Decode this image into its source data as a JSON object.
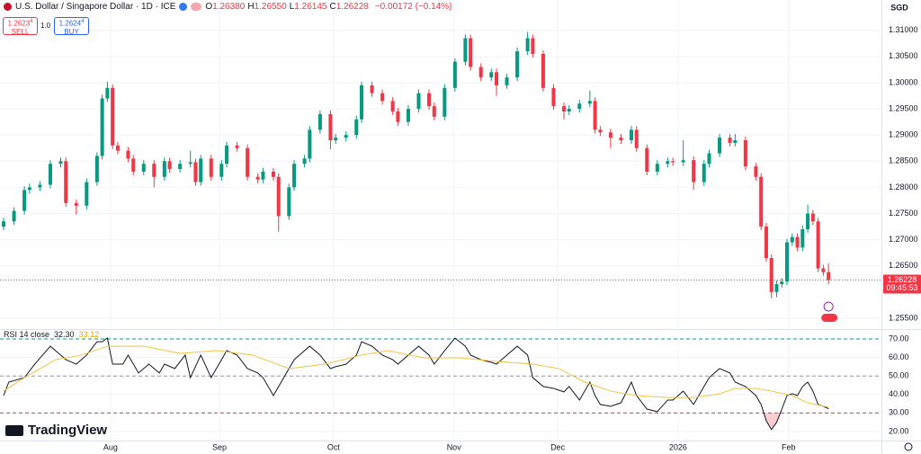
{
  "header": {
    "title": "U.S. Dollar / Singapore Dollar · 1D · ICE",
    "ohlc_keys": [
      "O",
      "H",
      "L",
      "C"
    ],
    "ohlc_values": [
      "1.26380",
      "1.26550",
      "1.26145",
      "1.26228"
    ],
    "change": "−0.00172 (−0.14%)",
    "sell_price": "1.2623",
    "sell_sup": "4",
    "sell_label": "SELL",
    "spread": "1.0",
    "buy_price": "1.2624",
    "buy_sup": "4",
    "buy_label": "BUY",
    "currency": "SGD",
    "price_tag_time": "09:45:53",
    "logo": "TradingView"
  },
  "chart_data": [
    {
      "type": "candlestick",
      "up_color": "#089981",
      "down_color": "#f23645",
      "grid": true,
      "last_price_line": true,
      "xlim": [
        -0.7,
        169.2
      ],
      "ylim": [
        1.2531,
        1.3158
      ],
      "xticks": [
        {
          "value": 20.6,
          "label": "Aug"
        },
        {
          "value": 41.6,
          "label": "Sep"
        },
        {
          "value": 63.6,
          "label": "Oct"
        },
        {
          "value": 86.8,
          "label": "Nov"
        },
        {
          "value": 106.8,
          "label": "Dec"
        },
        {
          "value": 130,
          "label": "2026"
        },
        {
          "value": 151.3,
          "label": "Feb"
        }
      ],
      "yticks": [
        {
          "value": 1.31,
          "label": "1.31000"
        },
        {
          "value": 1.305,
          "label": "1.30500"
        },
        {
          "value": 1.3,
          "label": "1.30000"
        },
        {
          "value": 1.295,
          "label": "1.29500"
        },
        {
          "value": 1.29,
          "label": "1.29000"
        },
        {
          "value": 1.285,
          "label": "1.28500"
        },
        {
          "value": 1.28,
          "label": "1.28000"
        },
        {
          "value": 1.275,
          "label": "1.27500"
        },
        {
          "value": 1.27,
          "label": "1.27000"
        },
        {
          "value": 1.265,
          "label": "1.26500"
        },
        {
          "value": 1.255,
          "label": "1.25500"
        }
      ],
      "x": [
        0,
        2,
        4,
        5,
        7,
        9,
        11,
        12,
        14,
        16,
        18,
        19,
        20,
        21,
        22,
        24,
        25,
        27,
        29,
        31,
        32,
        34,
        36,
        37,
        38,
        40,
        42,
        43,
        45,
        47,
        49,
        50,
        52,
        53,
        55,
        56,
        58,
        59,
        61,
        63,
        64,
        66,
        68,
        69,
        71,
        73,
        75,
        76,
        78,
        80,
        82,
        83,
        85,
        87,
        89,
        90,
        92,
        94,
        95,
        97,
        99,
        101,
        102,
        104,
        106,
        108,
        109,
        111,
        113,
        114,
        115,
        117,
        119,
        121,
        122,
        124,
        126,
        128,
        129,
        131,
        133,
        135,
        136,
        138,
        140,
        141,
        143,
        145,
        146,
        147,
        148,
        149,
        150,
        151,
        152,
        153,
        154,
        155,
        156,
        157,
        158,
        159
      ],
      "open": [
        1.2725,
        1.2735,
        1.2755,
        1.2795,
        1.28,
        1.2805,
        1.2845,
        1.285,
        1.277,
        1.2765,
        1.281,
        1.286,
        1.297,
        1.299,
        1.288,
        1.287,
        1.2855,
        1.283,
        1.2845,
        1.282,
        1.285,
        1.2835,
        1.2845,
        1.2848,
        1.281,
        1.2855,
        1.282,
        1.2845,
        1.288,
        1.2875,
        1.282,
        1.2815,
        1.283,
        1.282,
        1.2745,
        1.28,
        1.2845,
        1.2855,
        1.291,
        1.294,
        1.289,
        1.2895,
        1.29,
        1.293,
        1.2995,
        1.298,
        1.2965,
        1.2945,
        1.2925,
        1.295,
        1.298,
        1.2955,
        1.2935,
        1.299,
        1.304,
        1.3085,
        1.303,
        1.301,
        1.302,
        1.2995,
        1.301,
        1.306,
        1.3085,
        1.3055,
        1.299,
        1.2955,
        1.2945,
        1.295,
        1.296,
        1.2965,
        1.291,
        1.2905,
        1.2895,
        1.289,
        1.291,
        1.2875,
        1.283,
        1.2845,
        1.285,
        1.2848,
        1.2852,
        1.281,
        1.2845,
        1.2865,
        1.2895,
        1.2885,
        1.289,
        1.284,
        1.282,
        1.2725,
        1.2665,
        1.26,
        1.2615,
        1.262,
        1.2695,
        1.2705,
        1.2685,
        1.272,
        1.275,
        1.2735,
        1.2645,
        1.2638
      ],
      "high": [
        1.2742,
        1.2762,
        1.2802,
        1.2807,
        1.2812,
        1.2852,
        1.2857,
        1.2857,
        1.2777,
        1.2817,
        1.2867,
        1.2977,
        1.3002,
        1.2997,
        1.2887,
        1.2877,
        1.2862,
        1.2852,
        1.2852,
        1.2857,
        1.2857,
        1.2852,
        1.287,
        1.2855,
        1.2862,
        1.2862,
        1.2852,
        1.2887,
        1.2887,
        1.2882,
        1.2827,
        1.2837,
        1.2837,
        1.2827,
        1.2807,
        1.2852,
        1.2862,
        1.2917,
        1.2947,
        1.2947,
        1.2902,
        1.2907,
        1.2937,
        1.3002,
        1.3002,
        1.2987,
        1.2972,
        1.2952,
        1.2957,
        1.2987,
        1.2987,
        1.2962,
        1.2997,
        1.3047,
        1.3092,
        1.3092,
        1.3037,
        1.3027,
        1.3027,
        1.3017,
        1.3067,
        1.3097,
        1.3092,
        1.3062,
        1.2997,
        1.2962,
        1.2957,
        1.2967,
        1.2985,
        1.2972,
        1.2917,
        1.2912,
        1.2902,
        1.2917,
        1.2917,
        1.2882,
        1.2852,
        1.2857,
        1.2857,
        1.289,
        1.2859,
        1.2852,
        1.2872,
        1.2902,
        1.2902,
        1.2902,
        1.2897,
        1.2847,
        1.2827,
        1.2732,
        1.2672,
        1.2622,
        1.2627,
        1.2702,
        1.2712,
        1.2712,
        1.2727,
        1.2767,
        1.2757,
        1.2742,
        1.2652,
        1.2655
      ],
      "low": [
        1.2718,
        1.2728,
        1.2748,
        1.2788,
        1.2793,
        1.2798,
        1.2838,
        1.2763,
        1.2748,
        1.2758,
        1.2803,
        1.2853,
        1.2963,
        1.2873,
        1.2863,
        1.2848,
        1.2823,
        1.2823,
        1.28,
        1.2813,
        1.2828,
        1.2828,
        1.2838,
        1.2803,
        1.2803,
        1.2813,
        1.2813,
        1.2838,
        1.2868,
        1.2813,
        1.2808,
        1.2808,
        1.2813,
        1.2715,
        1.2738,
        1.2793,
        1.2838,
        1.2848,
        1.2903,
        1.2873,
        1.2883,
        1.2888,
        1.2893,
        1.2923,
        1.2973,
        1.2958,
        1.2938,
        1.2918,
        1.2918,
        1.2943,
        1.2948,
        1.2928,
        1.2928,
        1.2983,
        1.3033,
        1.3023,
        1.3003,
        1.3003,
        1.2975,
        1.2988,
        1.3003,
        1.3053,
        1.3048,
        1.2983,
        1.2948,
        1.293,
        1.2938,
        1.2943,
        1.2953,
        1.2903,
        1.2898,
        1.2875,
        1.2883,
        1.2883,
        1.2868,
        1.2823,
        1.2823,
        1.2838,
        1.2841,
        1.2841,
        1.2795,
        1.2803,
        1.2838,
        1.2858,
        1.2878,
        1.2878,
        1.2833,
        1.2813,
        1.2718,
        1.2658,
        1.2588,
        1.259,
        1.2608,
        1.2613,
        1.2688,
        1.2678,
        1.2678,
        1.2713,
        1.2728,
        1.2638,
        1.2631,
        1.26145
      ],
      "close": [
        1.2735,
        1.2755,
        1.2795,
        1.28,
        1.2805,
        1.2845,
        1.285,
        1.277,
        1.2765,
        1.281,
        1.286,
        1.297,
        1.299,
        1.288,
        1.287,
        1.2855,
        1.283,
        1.2845,
        1.282,
        1.285,
        1.2835,
        1.2845,
        1.2848,
        1.281,
        1.2855,
        1.282,
        1.2845,
        1.288,
        1.2875,
        1.282,
        1.2815,
        1.283,
        1.282,
        1.2745,
        1.28,
        1.2845,
        1.2855,
        1.291,
        1.294,
        1.289,
        1.2895,
        1.29,
        1.293,
        1.2995,
        1.298,
        1.2965,
        1.2945,
        1.2925,
        1.295,
        1.298,
        1.2955,
        1.2935,
        1.299,
        1.304,
        1.3085,
        1.303,
        1.301,
        1.302,
        1.2995,
        1.301,
        1.306,
        1.3085,
        1.3055,
        1.299,
        1.2955,
        1.2945,
        1.295,
        1.296,
        1.2965,
        1.291,
        1.2905,
        1.2895,
        1.289,
        1.291,
        1.2875,
        1.283,
        1.2845,
        1.285,
        1.2848,
        1.2852,
        1.281,
        1.2845,
        1.2865,
        1.2895,
        1.2885,
        1.289,
        1.284,
        1.282,
        1.2725,
        1.2665,
        1.26,
        1.2615,
        1.262,
        1.2695,
        1.2705,
        1.2685,
        1.272,
        1.275,
        1.2735,
        1.2645,
        1.2638,
        1.26228
      ]
    },
    {
      "type": "line",
      "title": "RSI 14 close",
      "grid": true,
      "xlim": [
        -0.7,
        169.2
      ],
      "ylim": [
        15.1,
        74.4
      ],
      "yticks": [
        {
          "value": 70,
          "label": "70.00"
        },
        {
          "value": 60,
          "label": "60.00"
        },
        {
          "value": 50,
          "label": "50.00"
        },
        {
          "value": 40,
          "label": "40.00"
        },
        {
          "value": 30,
          "label": "30.00"
        },
        {
          "value": 20,
          "label": "20.00"
        }
      ],
      "levels": [
        {
          "value": 70,
          "color": "#089981"
        },
        {
          "value": 50,
          "color": "#9598a1"
        },
        {
          "value": 30,
          "color": "#f23645"
        }
      ],
      "oversold_fill": "#f2364540",
      "series": [
        {
          "color": "#131722",
          "last_label": "32.30",
          "x": [
            0,
            1,
            4,
            6,
            9,
            11,
            12,
            14,
            16,
            18,
            19,
            20,
            21,
            23,
            24,
            26,
            28,
            30,
            31,
            33,
            35,
            36,
            38,
            40,
            42,
            43,
            45,
            47,
            49,
            50,
            52,
            54,
            56,
            58,
            59,
            61,
            63,
            64,
            66,
            68,
            69,
            71,
            73,
            75,
            76,
            78,
            80,
            82,
            83,
            85,
            87,
            89,
            90,
            92,
            94,
            95,
            97,
            99,
            101,
            102,
            104,
            106,
            108,
            109,
            111,
            113,
            114,
            115,
            117,
            119,
            121,
            122,
            124,
            126,
            128,
            129,
            131,
            133,
            135,
            136,
            138,
            140,
            141,
            143,
            145,
            146,
            147,
            148,
            149,
            150,
            151,
            152,
            153,
            154,
            155,
            156,
            157,
            158,
            159
          ],
          "values": [
            39.4,
            46.7,
            49.1,
            56.4,
            66.1,
            61.3,
            58.8,
            56.4,
            61.3,
            68.5,
            68.5,
            70.5,
            56.4,
            56.4,
            61.3,
            51.6,
            56.4,
            51.6,
            56.4,
            54,
            61.3,
            49.1,
            61.3,
            49.1,
            58.8,
            63.7,
            61.3,
            54,
            51.6,
            49.1,
            39.4,
            49.1,
            58.8,
            63.7,
            66.1,
            61.3,
            54,
            55,
            56.4,
            61.3,
            68.5,
            66.1,
            61.3,
            58.8,
            56.4,
            61.3,
            66.1,
            61.3,
            56.4,
            63.7,
            70.5,
            66.1,
            61.3,
            58.8,
            57.4,
            56.4,
            61.3,
            66.1,
            61.3,
            49.1,
            44.3,
            43.3,
            41.4,
            44.3,
            37,
            46.7,
            39.4,
            34.6,
            33.6,
            35.5,
            46.7,
            39.4,
            32.1,
            30.7,
            37,
            37,
            41.8,
            34.6,
            44.3,
            49.1,
            54,
            51.6,
            46.7,
            44.3,
            39.4,
            34.6,
            25.8,
            21,
            24.9,
            32.1,
            39.4,
            40.4,
            39.4,
            44.3,
            46.7,
            41.8,
            34.6,
            33.6,
            32.3
          ]
        },
        {
          "color": "#f5c242",
          "last_label": "33.12",
          "x": [
            0,
            4,
            10,
            15,
            20,
            27,
            34,
            41,
            48,
            55,
            62,
            69,
            74,
            81,
            88,
            95,
            102,
            107,
            112,
            117,
            122,
            128,
            133,
            138,
            141,
            145,
            148,
            152,
            155,
            159
          ],
          "values": [
            41.8,
            49.1,
            58.8,
            61.3,
            66.1,
            66.1,
            62.2,
            63.7,
            61.3,
            54,
            56.4,
            61.3,
            63.7,
            59.8,
            59.8,
            57.9,
            56.4,
            54,
            46.7,
            41.8,
            39.4,
            38.4,
            38.4,
            40.4,
            43.3,
            43.3,
            41.8,
            39.4,
            35.5,
            33.12
          ]
        }
      ]
    }
  ]
}
